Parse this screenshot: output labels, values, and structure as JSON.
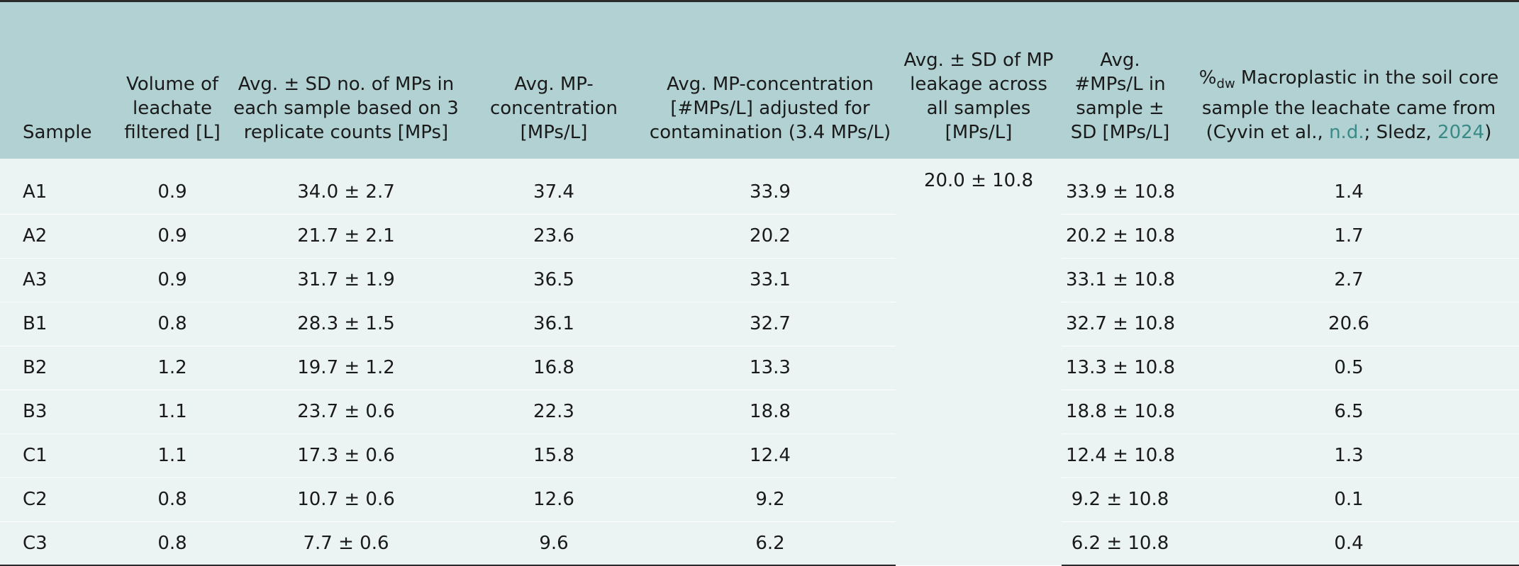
{
  "headers": {
    "sample": "Sample",
    "volume": "Volume of leachate filtered [L]",
    "avg_no": "Avg. ± SD no. of MPs in each sample based on 3 replicate counts [MPs]",
    "avg_conc": "Avg. MP-concentration [MPs/L]",
    "adj_conc": "Avg. MP-concentration [#MPs/L] adjusted for contamination (3.4 MPs/L)",
    "leakage": "Avg. ± SD of MP leakage across all samples [MPs/L]",
    "per_sample": "Avg. #MPs/L in sample ± SD [MPs/L]",
    "macro_prefix": "%",
    "macro_sub": "dw",
    "macro_text": " Macroplastic in the soil core sample the leachate came from (Cyvin et al., ",
    "macro_link1": "n.d.",
    "macro_mid": "; Sledz, ",
    "macro_link2": "2024",
    "macro_end": ")"
  },
  "leakage_value": "20.0 ± 10.8",
  "rows": [
    {
      "sample": "A1",
      "volume": "0.9",
      "avg_no": "34.0 ± 2.7",
      "avg_conc": "37.4",
      "adj_conc": "33.9",
      "per_sample": "33.9 ± 10.8",
      "macro": "1.4"
    },
    {
      "sample": "A2",
      "volume": "0.9",
      "avg_no": "21.7 ± 2.1",
      "avg_conc": "23.6",
      "adj_conc": "20.2",
      "per_sample": "20.2 ± 10.8",
      "macro": "1.7"
    },
    {
      "sample": "A3",
      "volume": "0.9",
      "avg_no": "31.7 ± 1.9",
      "avg_conc": "36.5",
      "adj_conc": "33.1",
      "per_sample": "33.1 ± 10.8",
      "macro": "2.7"
    },
    {
      "sample": "B1",
      "volume": "0.8",
      "avg_no": "28.3 ± 1.5",
      "avg_conc": "36.1",
      "adj_conc": "32.7",
      "per_sample": "32.7 ± 10.8",
      "macro": "20.6"
    },
    {
      "sample": "B2",
      "volume": "1.2",
      "avg_no": "19.7 ± 1.2",
      "avg_conc": "16.8",
      "adj_conc": "13.3",
      "per_sample": "13.3 ± 10.8",
      "macro": "0.5"
    },
    {
      "sample": "B3",
      "volume": "1.1",
      "avg_no": "23.7 ± 0.6",
      "avg_conc": "22.3",
      "adj_conc": "18.8",
      "per_sample": "18.8 ± 10.8",
      "macro": "6.5"
    },
    {
      "sample": "C1",
      "volume": "1.1",
      "avg_no": "17.3 ± 0.6",
      "avg_conc": "15.8",
      "adj_conc": "12.4",
      "per_sample": "12.4 ± 10.8",
      "macro": "1.3"
    },
    {
      "sample": "C2",
      "volume": "0.8",
      "avg_no": "10.7 ± 0.6",
      "avg_conc": "12.6",
      "adj_conc": "9.2",
      "per_sample": "9.2 ± 10.8",
      "macro": "0.1"
    },
    {
      "sample": "C3",
      "volume": "0.8",
      "avg_no": "7.7 ± 0.6",
      "avg_conc": "9.6",
      "adj_conc": "6.2",
      "per_sample": "6.2 ± 10.8",
      "macro": "0.4"
    }
  ]
}
